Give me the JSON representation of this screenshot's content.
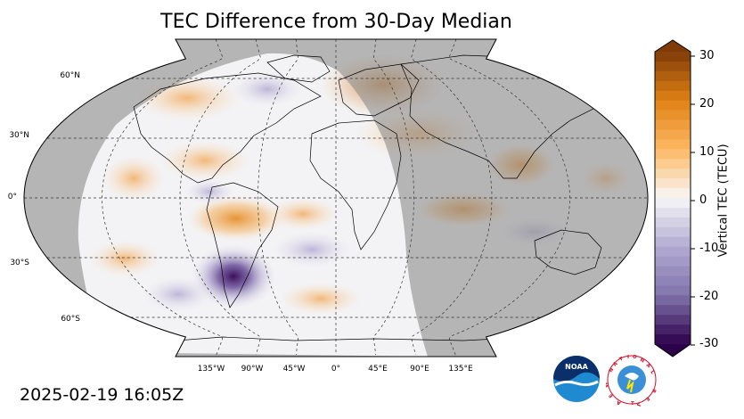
{
  "title": "TEC Difference from 30-Day Median",
  "timestamp": "2025-02-19 16:05Z",
  "latitude_labels": [
    "60°N",
    "30°N",
    "0°",
    "30°S",
    "60°S"
  ],
  "longitude_labels": [
    "135°W",
    "90°W",
    "45°W",
    "0°",
    "45°E",
    "90°E",
    "135°E"
  ],
  "colorbar": {
    "label": "Vertical TEC (TECU)",
    "ticks": [
      "30",
      "20",
      "10",
      "0",
      "-10",
      "-20",
      "-30"
    ],
    "min": -30,
    "max": 30,
    "colors": {
      "high": "#7f3b08",
      "mid_high": "#e08214",
      "light_high": "#fdb863",
      "zero": "#f7f7f7",
      "light_low": "#b2abd2",
      "mid_low": "#8073ac",
      "low": "#2d004b"
    }
  },
  "map": {
    "projection": "robinson",
    "night_shade_color": "#a8a8a8",
    "land_outline_color": "#000000"
  },
  "logos": {
    "noaa_text": "NOAA",
    "nws_text": "NATIONAL WEATHER SERVICE"
  }
}
